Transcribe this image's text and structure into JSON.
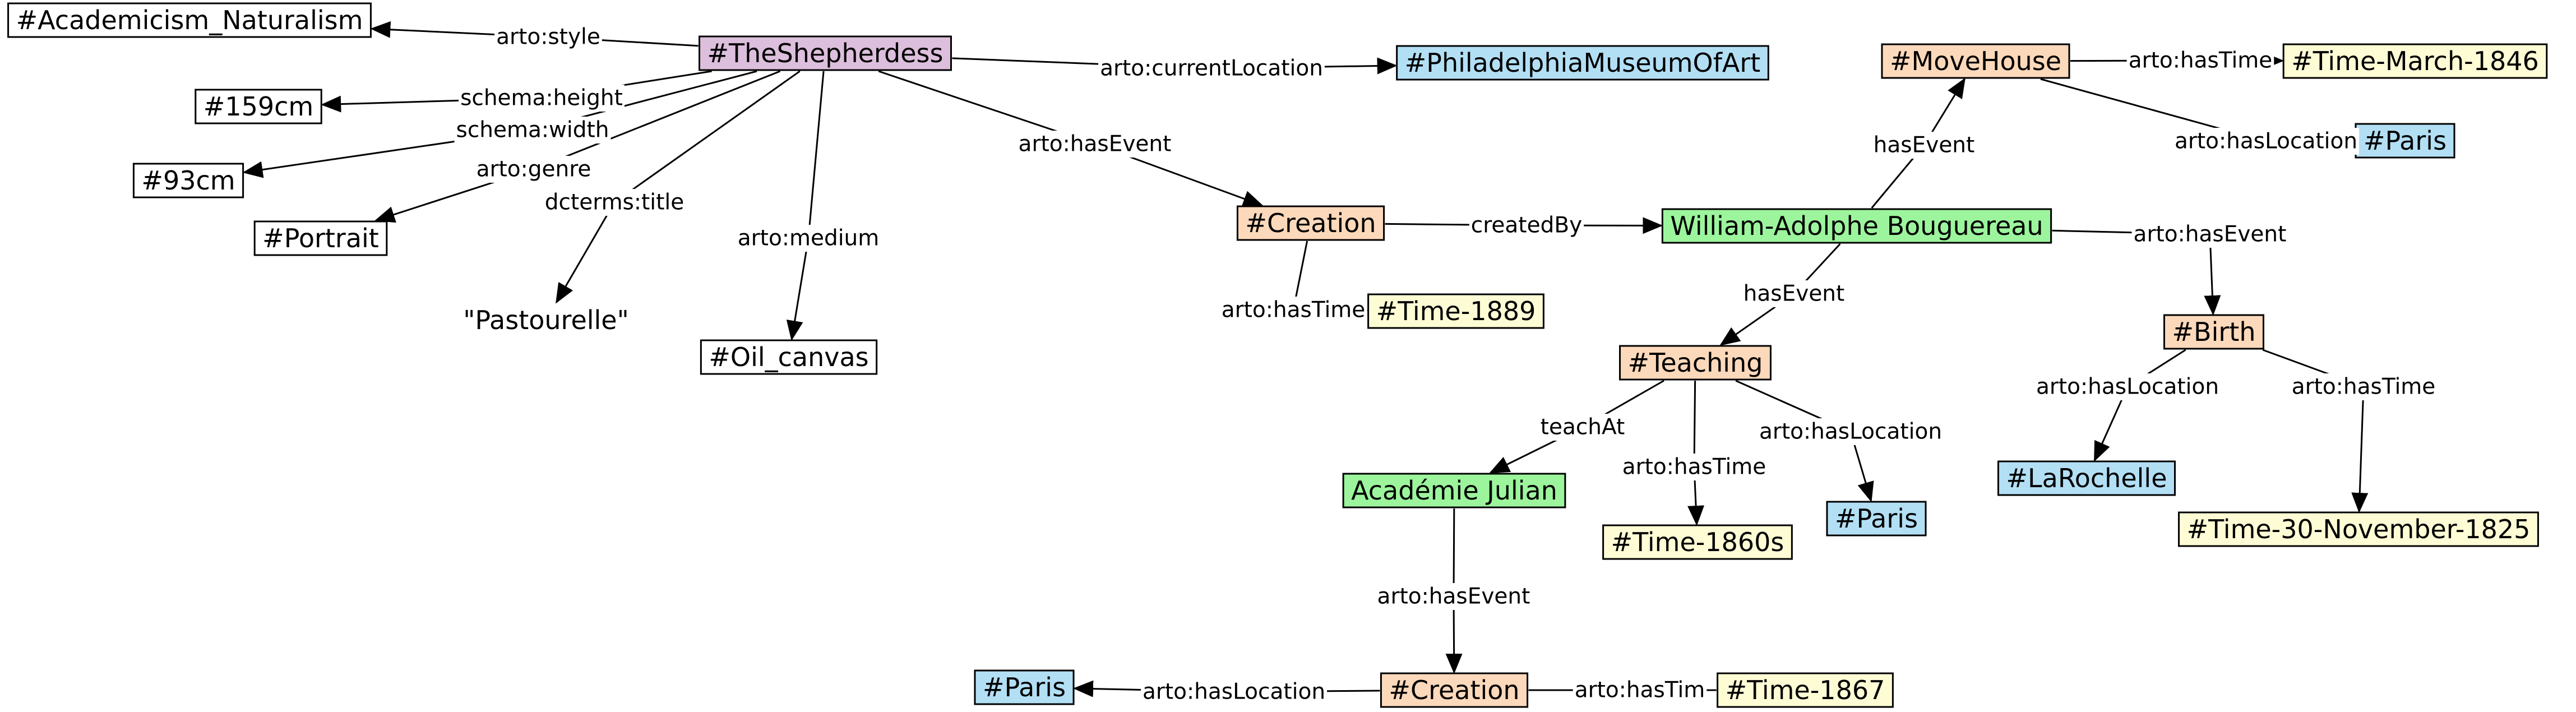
{
  "graph": {
    "colors": {
      "artwork": "#dcbfdc",
      "event": "#fcd9bb",
      "person": "#9cf59c",
      "place": "#b3dff5",
      "time": "#fefcd5",
      "literal": "#ffffff"
    },
    "nodes": [
      {
        "id": "academicism",
        "label": "#Academicism_Naturalism",
        "kind": "literal"
      },
      {
        "id": "height",
        "label": "#159cm",
        "kind": "literal"
      },
      {
        "id": "width",
        "label": "#93cm",
        "kind": "literal"
      },
      {
        "id": "portrait",
        "label": "#Portrait",
        "kind": "literal"
      },
      {
        "id": "pastourelle",
        "label": "\"Pastourelle\"",
        "kind": "plain"
      },
      {
        "id": "oil",
        "label": "#Oil_canvas",
        "kind": "literal"
      },
      {
        "id": "shepherdess",
        "label": "#TheShepherdess",
        "kind": "artwork"
      },
      {
        "id": "philly",
        "label": "#PhiladelphiaMuseumOfArt",
        "kind": "place"
      },
      {
        "id": "creation1",
        "label": "#Creation",
        "kind": "event"
      },
      {
        "id": "time1889",
        "label": "#Time-1889",
        "kind": "time"
      },
      {
        "id": "bouguereau",
        "label": "William-Adolphe Bouguereau",
        "kind": "person"
      },
      {
        "id": "movehouse",
        "label": "#MoveHouse",
        "kind": "event"
      },
      {
        "id": "timemarch",
        "label": "#Time-March-1846",
        "kind": "time"
      },
      {
        "id": "paris1",
        "label": "#Paris",
        "kind": "place"
      },
      {
        "id": "birth",
        "label": "#Birth",
        "kind": "event"
      },
      {
        "id": "larochelle",
        "label": "#LaRochelle",
        "kind": "place"
      },
      {
        "id": "time1825",
        "label": "#Time-30-November-1825",
        "kind": "time"
      },
      {
        "id": "teaching",
        "label": "#Teaching",
        "kind": "event"
      },
      {
        "id": "julian",
        "label": "Académie Julian",
        "kind": "person"
      },
      {
        "id": "time1860",
        "label": "#Time-1860s",
        "kind": "time"
      },
      {
        "id": "paris2",
        "label": "#Paris",
        "kind": "place"
      },
      {
        "id": "creation2",
        "label": "#Creation",
        "kind": "event"
      },
      {
        "id": "paris3",
        "label": "#Paris",
        "kind": "place"
      },
      {
        "id": "time1867",
        "label": "#Time-1867",
        "kind": "time"
      }
    ],
    "edges": [
      {
        "from": "shepherdess",
        "to": "academicism",
        "label": "arto:style",
        "arrow": true
      },
      {
        "from": "shepherdess",
        "to": "height",
        "label": "schema:height",
        "arrow": true
      },
      {
        "from": "shepherdess",
        "to": "width",
        "label": "schema:width",
        "arrow": true
      },
      {
        "from": "shepherdess",
        "to": "portrait",
        "label": "arto:genre",
        "arrow": true
      },
      {
        "from": "shepherdess",
        "to": "pastourelle",
        "label": "dcterms:title",
        "arrow": true
      },
      {
        "from": "shepherdess",
        "to": "oil",
        "label": "arto:medium",
        "arrow": true
      },
      {
        "from": "shepherdess",
        "to": "philly",
        "label": "arto:currentLocation",
        "arrow": true
      },
      {
        "from": "shepherdess",
        "to": "creation1",
        "label": "arto:hasEvent",
        "arrow": true
      },
      {
        "from": "creation1",
        "to": "bouguereau",
        "label": "createdBy",
        "arrow": true
      },
      {
        "from": "creation1",
        "to": "time1889",
        "label": "arto:hasTime",
        "arrow": false
      },
      {
        "from": "bouguereau",
        "to": "movehouse",
        "label": "hasEvent",
        "arrow": true
      },
      {
        "from": "movehouse",
        "to": "timemarch",
        "label": "arto:hasTime",
        "arrow": true
      },
      {
        "from": "movehouse",
        "to": "paris1",
        "label": "arto:hasLocation",
        "arrow": true
      },
      {
        "from": "bouguereau",
        "to": "birth",
        "label": "arto:hasEvent",
        "arrow": true
      },
      {
        "from": "birth",
        "to": "larochelle",
        "label": "arto:hasLocation",
        "arrow": true
      },
      {
        "from": "birth",
        "to": "time1825",
        "label": "arto:hasTime",
        "arrow": true
      },
      {
        "from": "bouguereau",
        "to": "teaching",
        "label": "hasEvent",
        "arrow": true
      },
      {
        "from": "teaching",
        "to": "julian",
        "label": "teachAt",
        "arrow": true
      },
      {
        "from": "teaching",
        "to": "time1860",
        "label": "arto:hasTime",
        "arrow": true
      },
      {
        "from": "teaching",
        "to": "paris2",
        "label": "arto:hasLocation",
        "arrow": true
      },
      {
        "from": "julian",
        "to": "creation2",
        "label": "arto:hasEvent",
        "arrow": true
      },
      {
        "from": "creation2",
        "to": "paris3",
        "label": "arto:hasLocation",
        "arrow": true
      },
      {
        "from": "creation2",
        "to": "time1867",
        "label": "arto:hasTim",
        "arrow": false
      }
    ]
  }
}
